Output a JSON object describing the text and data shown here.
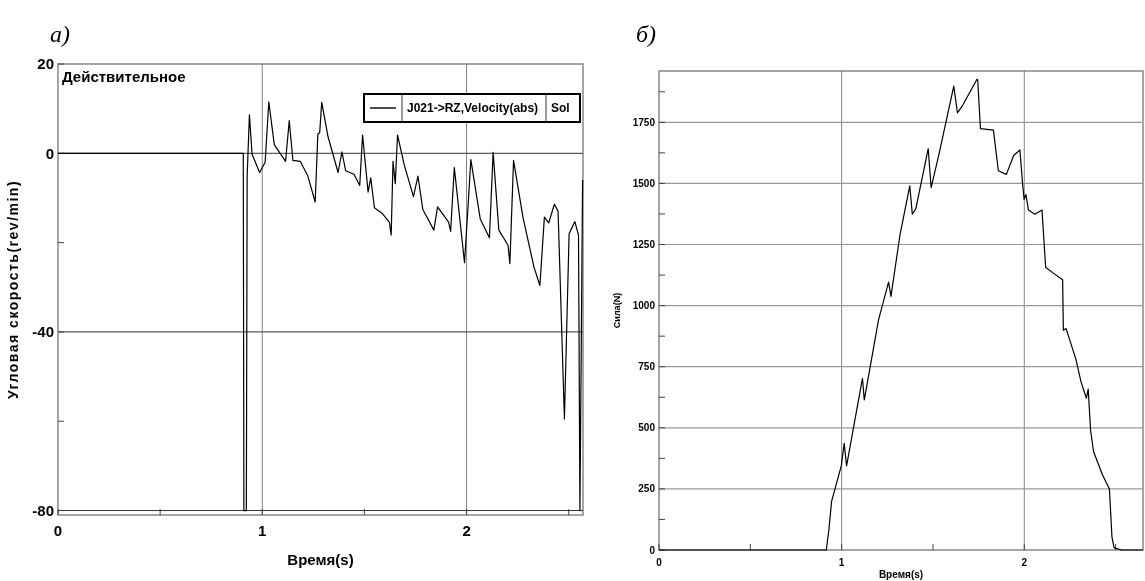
{
  "chart_data": [
    {
      "type": "line",
      "title": "а)",
      "ylabel": "Угловая скорость(rev/min)",
      "xlabel": "Время(s)",
      "annotations": [
        "Действительное",
        "Sol"
      ],
      "legend": "top right",
      "grid": true,
      "xlim": [
        0,
        2.57
      ],
      "ylim": [
        -81,
        20
      ],
      "xticks": [
        0,
        {
          "value": 0.5,
          "label": null
        },
        1,
        {
          "value": 1.5,
          "label": null
        },
        2,
        {
          "value": 2.5,
          "label": null
        }
      ],
      "yticks": [
        20,
        0,
        {
          "value": -20,
          "label": null
        },
        -40,
        {
          "value": -60,
          "label": null
        },
        -80
      ],
      "series": [
        {
          "name": "J021->RZ,Velocity(abs)",
          "color": "#000000",
          "x": [
            0,
            0.907,
            0.91,
            0.922,
            0.926,
            0.937,
            0.95,
            0.987,
            1.014,
            1.032,
            1.059,
            1.114,
            1.132,
            1.15,
            1.186,
            1.223,
            1.259,
            1.272,
            1.281,
            1.291,
            1.322,
            1.371,
            1.39,
            1.408,
            1.449,
            1.477,
            1.491,
            1.518,
            1.531,
            1.549,
            1.586,
            1.622,
            1.631,
            1.64,
            1.651,
            1.662,
            1.695,
            1.74,
            1.762,
            1.786,
            1.84,
            1.858,
            1.912,
            1.922,
            1.94,
            1.99,
            2.009,
            2.021,
            2.067,
            2.112,
            2.13,
            2.158,
            2.203,
            2.212,
            2.23,
            2.276,
            2.33,
            2.359,
            2.381,
            2.402,
            2.43,
            2.448,
            2.479,
            2.502,
            2.53,
            2.548,
            2.555,
            2.568
          ],
          "values": [
            0,
            0,
            -80,
            -80,
            -5,
            8.6,
            -0.2,
            -4.3,
            -2,
            11.5,
            1.9,
            -1.8,
            7.3,
            -1.6,
            -1.8,
            -5.1,
            -10.9,
            4.3,
            4.6,
            11.4,
            3.7,
            -4.3,
            0.3,
            -3.9,
            -4.7,
            -7.2,
            4.1,
            -8.7,
            -5.5,
            -12.2,
            -13.4,
            -15.4,
            -18.3,
            -1.8,
            -6.8,
            4.1,
            -2.6,
            -9.7,
            -5.1,
            -12.6,
            -17.2,
            -12,
            -15.4,
            -17.5,
            -3.2,
            -24.5,
            -10.6,
            -1.4,
            -14.7,
            -18.9,
            0.2,
            -17.2,
            -20.6,
            -24.7,
            -1.6,
            -14.3,
            -25.5,
            -29.6,
            -14.3,
            -15.6,
            -11.4,
            -13,
            -59.5,
            -18,
            -15.3,
            -18.3,
            -80,
            -6
          ]
        }
      ]
    },
    {
      "type": "line",
      "title": "б)",
      "ylabel": "Сила(N)",
      "xlabel": "Время(s)",
      "grid": true,
      "xlim": [
        0,
        2.65
      ],
      "ylim": [
        0,
        1960
      ],
      "xticks": [
        0,
        {
          "value": 0.5,
          "label": null
        },
        1,
        {
          "value": 1.5,
          "label": null
        },
        2,
        {
          "value": 2.5,
          "label": null
        }
      ],
      "yticks": [
        0,
        {
          "value": 125,
          "label": null
        },
        250,
        {
          "value": 375,
          "label": null
        },
        500,
        {
          "value": 625,
          "label": null
        },
        750,
        {
          "value": 875,
          "label": null
        },
        1000,
        {
          "value": 1125,
          "label": null
        },
        1250,
        {
          "value": 1375,
          "label": null
        },
        1500,
        {
          "value": 1625,
          "label": null
        },
        1750,
        {
          "value": 1875,
          "label": null
        }
      ],
      "series": [
        {
          "color": "#000000",
          "x": [
            0,
            0.916,
            0.93,
            0.945,
            0.998,
            1.014,
            1.027,
            1.114,
            1.124,
            1.202,
            1.257,
            1.27,
            1.319,
            1.373,
            1.387,
            1.406,
            1.474,
            1.49,
            1.533,
            1.614,
            1.634,
            1.659,
            1.741,
            1.745,
            1.76,
            1.831,
            1.858,
            1.902,
            1.941,
            1.976,
            1.99,
            1.999,
            2.009,
            2.023,
            2.058,
            2.097,
            2.117,
            2.155,
            2.21,
            2.214,
            2.229,
            2.282,
            2.311,
            2.34,
            2.35,
            2.363,
            2.379,
            2.428,
            2.466,
            2.48,
            2.492,
            2.534,
            2.65
          ],
          "values": [
            0,
            0,
            82,
            199,
            344,
            436,
            344,
            702,
            614,
            942,
            1096,
            1038,
            1287,
            1490,
            1374,
            1396,
            1642,
            1483,
            1620,
            1898,
            1789,
            1815,
            1926,
            1924,
            1724,
            1718,
            1552,
            1537,
            1613,
            1637,
            1504,
            1435,
            1454,
            1391,
            1374,
            1391,
            1157,
            1135,
            1106,
            899,
            906,
            782,
            687,
            621,
            658,
            490,
            403,
            308,
            250,
            53,
            9,
            0,
            0
          ]
        }
      ]
    }
  ]
}
